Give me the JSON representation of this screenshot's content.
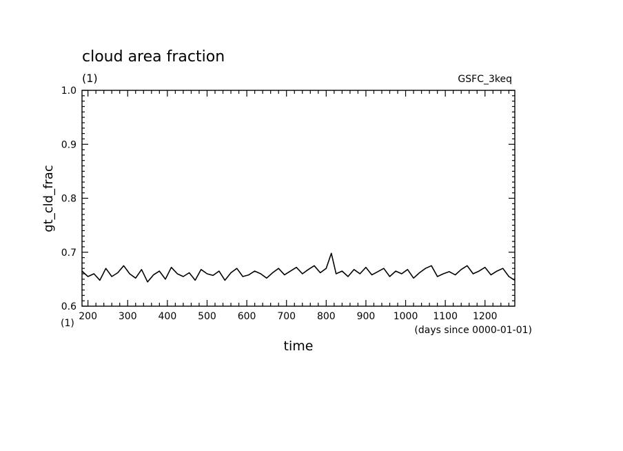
{
  "chart_data": {
    "type": "line",
    "title": "cloud area fraction",
    "units_label": "(1)",
    "experiment": "GSFC_3keq",
    "ylabel": "gt_cld_frac",
    "xlabel": "time",
    "x_units": "(days since 0000-01-01)",
    "x_axis_units_marker": "(1)",
    "xlim": [
      185,
      1275
    ],
    "ylim": [
      0.6,
      1.0
    ],
    "x_ticks": [
      "200",
      "300",
      "400",
      "500",
      "600",
      "700",
      "800",
      "900",
      "1000",
      "1100",
      "1200"
    ],
    "y_ticks": [
      "0.6",
      "0.7",
      "0.8",
      "0.9",
      "1.0"
    ],
    "grid": false,
    "line_color": "#000000",
    "series": [
      {
        "x": [
          185,
          200,
          215,
          230,
          245,
          260,
          275,
          290,
          305,
          320,
          335,
          350,
          365,
          380,
          395,
          410,
          425,
          440,
          455,
          470,
          485,
          500,
          515,
          530,
          545,
          560,
          575,
          590,
          605,
          620,
          635,
          650,
          665,
          680,
          695,
          710,
          725,
          740,
          755,
          770,
          785,
          800,
          813,
          825,
          840,
          855,
          870,
          885,
          900,
          915,
          930,
          945,
          960,
          975,
          990,
          1005,
          1020,
          1035,
          1050,
          1065,
          1080,
          1095,
          1110,
          1125,
          1140,
          1155,
          1170,
          1185,
          1200,
          1215,
          1230,
          1245,
          1260,
          1275
        ],
        "y": [
          0.665,
          0.655,
          0.66,
          0.648,
          0.67,
          0.655,
          0.662,
          0.675,
          0.66,
          0.652,
          0.668,
          0.645,
          0.658,
          0.665,
          0.65,
          0.672,
          0.66,
          0.655,
          0.662,
          0.648,
          0.668,
          0.66,
          0.657,
          0.665,
          0.648,
          0.662,
          0.67,
          0.655,
          0.658,
          0.665,
          0.66,
          0.652,
          0.662,
          0.67,
          0.658,
          0.665,
          0.672,
          0.66,
          0.668,
          0.675,
          0.662,
          0.67,
          0.698,
          0.66,
          0.665,
          0.655,
          0.668,
          0.66,
          0.672,
          0.658,
          0.664,
          0.67,
          0.655,
          0.665,
          0.66,
          0.668,
          0.652,
          0.662,
          0.67,
          0.675,
          0.655,
          0.66,
          0.664,
          0.658,
          0.668,
          0.675,
          0.66,
          0.665,
          0.672,
          0.658,
          0.665,
          0.67,
          0.655,
          0.648
        ]
      }
    ]
  }
}
